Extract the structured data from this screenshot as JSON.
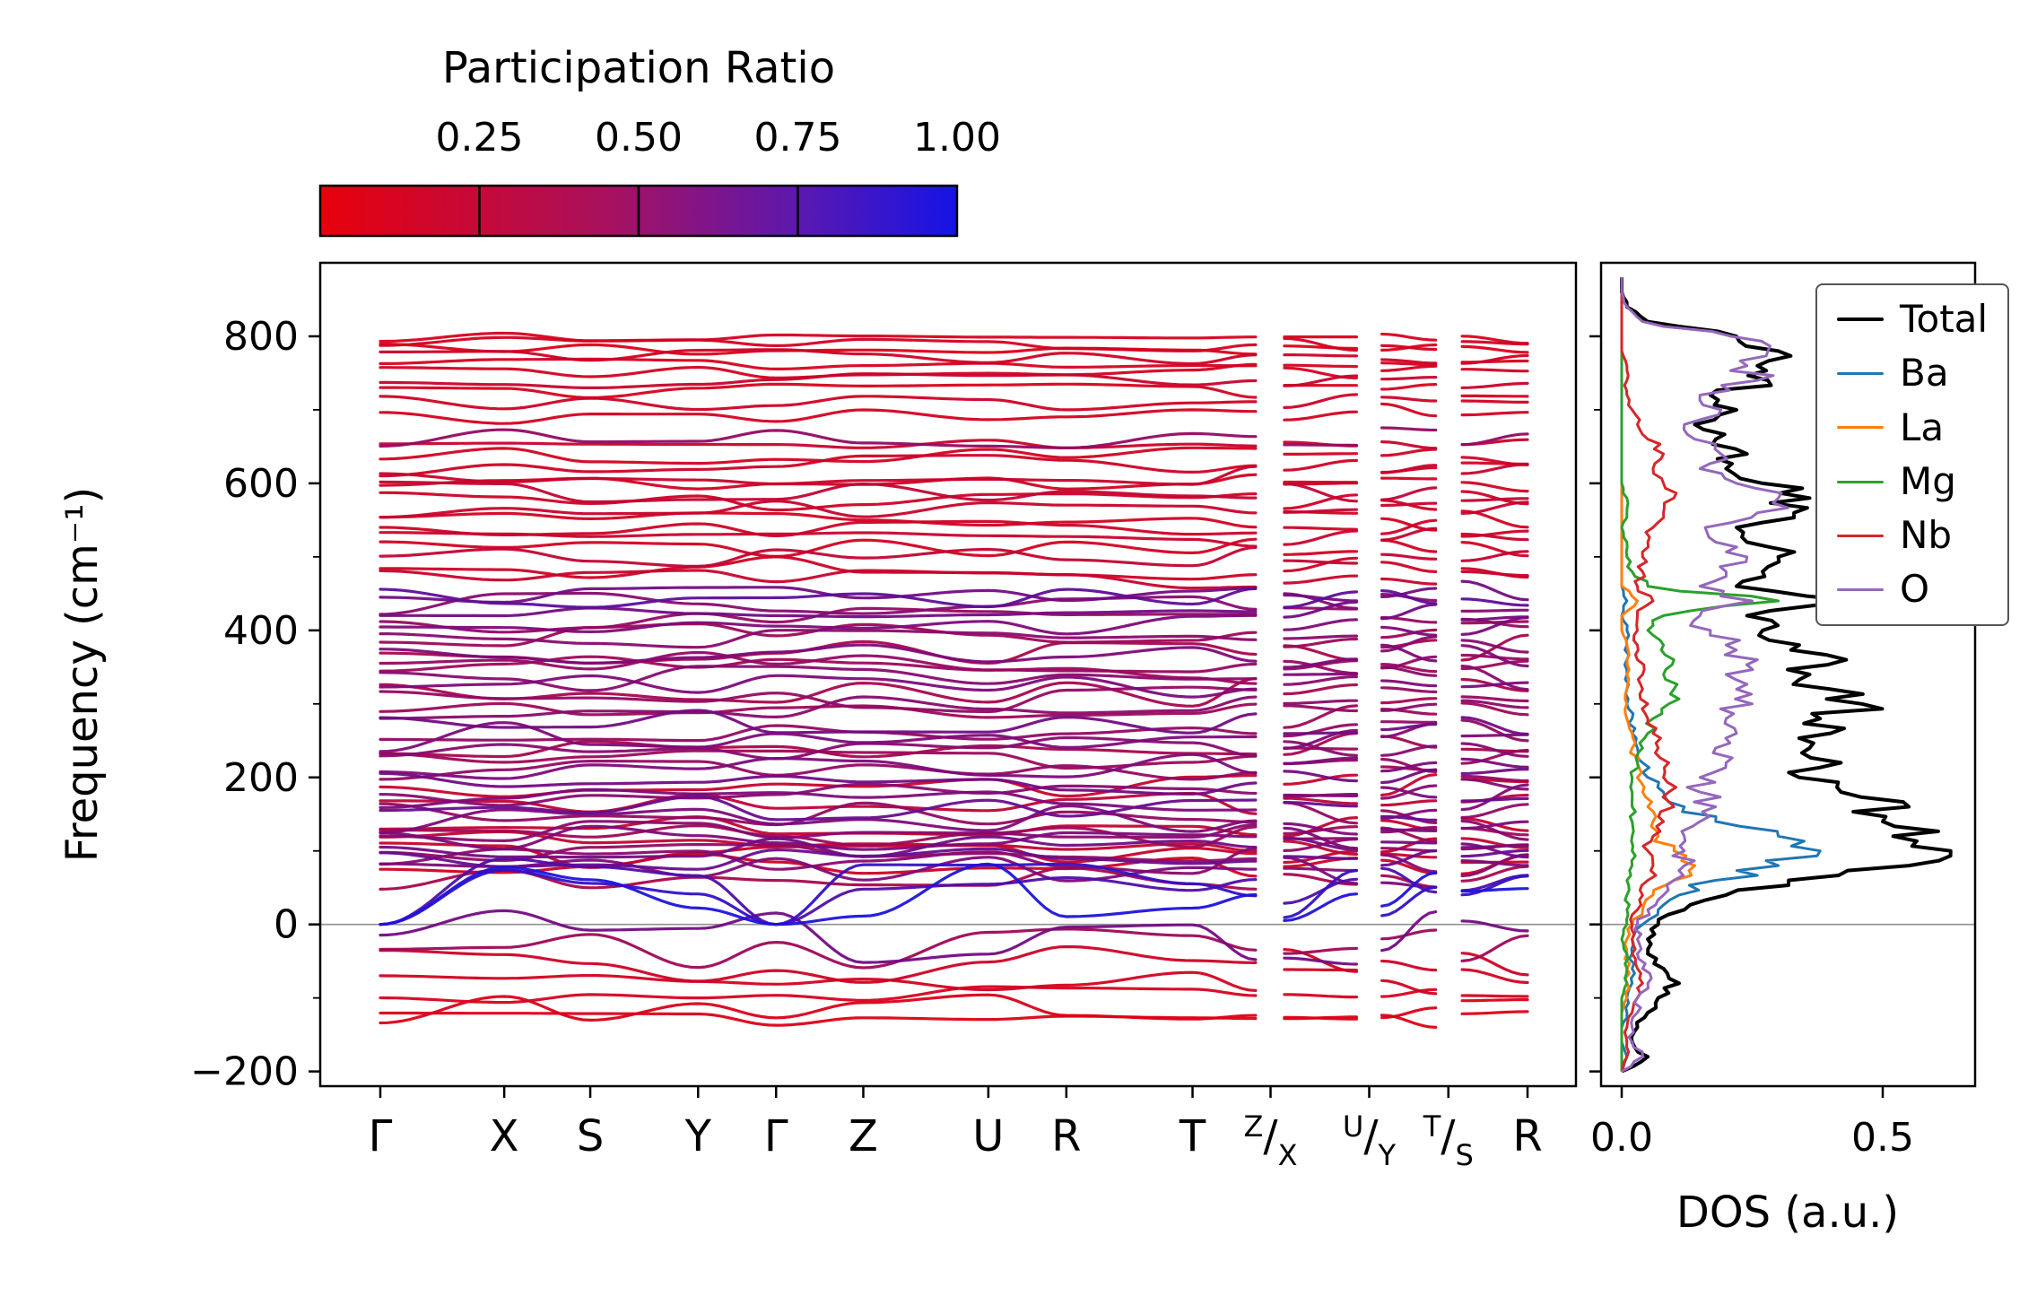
{
  "figure": {
    "background": "#ffffff"
  },
  "colorbar": {
    "title": "Participation Ratio",
    "vmin": 0,
    "vmax": 1,
    "ticks": [
      {
        "v": 0.25,
        "label": "0.25"
      },
      {
        "v": 0.5,
        "label": "0.50"
      },
      {
        "v": 0.75,
        "label": "0.75"
      },
      {
        "v": 1.0,
        "label": "1.00"
      }
    ],
    "gradient": [
      {
        "p": 0,
        "c": "#e8000b"
      },
      {
        "p": 45,
        "c": "#a8115e"
      },
      {
        "p": 75,
        "c": "#5c18af"
      },
      {
        "p": 100,
        "c": "#1414e6"
      }
    ]
  },
  "chart_data": [
    {
      "type": "line",
      "role": "phonon-band-structure",
      "ylabel": "Frequency (cm⁻¹)",
      "ylim": [
        -220,
        900
      ],
      "yticks": [
        {
          "v": -200,
          "label": "−200"
        },
        {
          "v": 0,
          "label": "0"
        },
        {
          "v": 200,
          "label": "200"
        },
        {
          "v": 400,
          "label": "400"
        },
        {
          "v": 600,
          "label": "600"
        },
        {
          "v": 800,
          "label": "800"
        }
      ],
      "yminor": [
        -100,
        100,
        300,
        500,
        700
      ],
      "zero_line_color": "#909090",
      "colormap": {
        "low": "#e8000b",
        "high": "#1414e6",
        "measure": "participation ratio"
      },
      "kpath_labels": [
        {
          "t": "Γ",
          "pos": 0
        },
        {
          "t": "X",
          "pos": 0.108
        },
        {
          "t": "S",
          "pos": 0.183
        },
        {
          "t": "Y",
          "pos": 0.277
        },
        {
          "t": "Γ",
          "pos": 0.345
        },
        {
          "t": "Z",
          "pos": 0.421
        },
        {
          "t": "U",
          "pos": 0.53
        },
        {
          "t": "R",
          "pos": 0.598
        },
        {
          "t": "T",
          "pos": 0.708
        },
        {
          "sup": "Z",
          "sub": "X",
          "pos": 0.776
        },
        {
          "sup": "U",
          "sub": "Y",
          "pos": 0.862
        },
        {
          "sup": "T",
          "sub": "S",
          "pos": 0.931
        },
        {
          "t": "R",
          "pos": 1
        }
      ],
      "segments": [
        {
          "j": [
            0,
            1,
            2,
            3,
            4,
            5,
            6,
            7,
            8,
            9
          ],
          "p": [
            0,
            0.108,
            0.183,
            0.277,
            0.345,
            0.421,
            0.53,
            0.598,
            0.708,
            0.763
          ]
        },
        {
          "j": [
            10,
            11
          ],
          "p": [
            0.788,
            0.851
          ]
        },
        {
          "j": [
            12,
            13
          ],
          "p": [
            0.873,
            0.92
          ]
        },
        {
          "j": [
            14,
            15
          ],
          "p": [
            0.943,
            1
          ]
        }
      ],
      "gamma_nodes": [
        0,
        4
      ],
      "bands": [
        [
          -112,
          22,
          0.06
        ],
        [
          -95,
          14,
          0.08
        ],
        [
          -128,
          12,
          0.05
        ],
        [
          -78,
          18,
          0.1
        ],
        [
          -55,
          25,
          0.12
        ],
        [
          -35,
          30,
          0.35
        ],
        [
          -18,
          38,
          0.55
        ],
        [
          40,
          45,
          0.95,
          1
        ],
        [
          48,
          40,
          0.85,
          1
        ],
        [
          58,
          35,
          0.72,
          1
        ],
        [
          65,
          18,
          0.3
        ],
        [
          72,
          22,
          0.5
        ],
        [
          80,
          16,
          0.12
        ],
        [
          85,
          20,
          0.45
        ],
        [
          90,
          15,
          0.6
        ],
        [
          95,
          18,
          0.15
        ],
        [
          100,
          20,
          0.4
        ],
        [
          105,
          15,
          0.55
        ],
        [
          110,
          18,
          0.18
        ],
        [
          115,
          20,
          0.5
        ],
        [
          120,
          16,
          0.35
        ],
        [
          128,
          18,
          0.45
        ],
        [
          135,
          15,
          0.18
        ],
        [
          142,
          20,
          0.5
        ],
        [
          150,
          16,
          0.4
        ],
        [
          158,
          18,
          0.6
        ],
        [
          165,
          15,
          0.2
        ],
        [
          172,
          18,
          0.5
        ],
        [
          180,
          20,
          0.45
        ],
        [
          188,
          16,
          0.15
        ],
        [
          195,
          18,
          0.55
        ],
        [
          205,
          20,
          0.4
        ],
        [
          215,
          18,
          0.5
        ],
        [
          225,
          16,
          0.35
        ],
        [
          235,
          20,
          0.45
        ],
        [
          245,
          18,
          0.3
        ],
        [
          255,
          20,
          0.5
        ],
        [
          265,
          16,
          0.4
        ],
        [
          275,
          18,
          0.55
        ],
        [
          285,
          20,
          0.35
        ],
        [
          295,
          16,
          0.45
        ],
        [
          305,
          18,
          0.4
        ],
        [
          315,
          20,
          0.3
        ],
        [
          325,
          16,
          0.5
        ],
        [
          335,
          18,
          0.45
        ],
        [
          345,
          20,
          0.35
        ],
        [
          355,
          16,
          0.4
        ],
        [
          365,
          18,
          0.5
        ],
        [
          375,
          20,
          0.3
        ],
        [
          385,
          16,
          0.45
        ],
        [
          395,
          18,
          0.35
        ],
        [
          405,
          16,
          0.5
        ],
        [
          415,
          18,
          0.4
        ],
        [
          425,
          14,
          0.55
        ],
        [
          435,
          16,
          0.45
        ],
        [
          445,
          14,
          0.65
        ],
        [
          452,
          16,
          0.55
        ],
        [
          470,
          14,
          0.15
        ],
        [
          485,
          16,
          0.12
        ],
        [
          500,
          14,
          0.18
        ],
        [
          512,
          12,
          0.1
        ],
        [
          525,
          14,
          0.15
        ],
        [
          538,
          12,
          0.12
        ],
        [
          550,
          14,
          0.1
        ],
        [
          562,
          14,
          0.15
        ],
        [
          575,
          16,
          0.12
        ],
        [
          588,
          14,
          0.18
        ],
        [
          600,
          12,
          0.1
        ],
        [
          612,
          14,
          0.15
        ],
        [
          625,
          16,
          0.12
        ],
        [
          638,
          12,
          0.1
        ],
        [
          650,
          10,
          0.15
        ],
        [
          662,
          14,
          0.4
        ],
        [
          695,
          14,
          0.1
        ],
        [
          710,
          12,
          0.12
        ],
        [
          725,
          10,
          0.08
        ],
        [
          740,
          12,
          0.15
        ],
        [
          752,
          10,
          0.1
        ],
        [
          762,
          8,
          0.08
        ],
        [
          772,
          10,
          0.12
        ],
        [
          782,
          8,
          0.06
        ],
        [
          790,
          10,
          0.1
        ],
        [
          798,
          8,
          0.08
        ]
      ]
    },
    {
      "type": "line",
      "role": "density-of-states",
      "xlabel": "DOS (a.u.)",
      "xlim": [
        -0.04,
        0.68
      ],
      "xticks": [
        {
          "v": 0,
          "label": "0.0"
        },
        {
          "v": 0.5,
          "label": "0.5"
        }
      ],
      "freq_min": -200,
      "freq_step": 20,
      "series": [
        {
          "name": "Total",
          "color": "#000000",
          "lw": 4,
          "values": [
            0.0,
            0.05,
            0.02,
            0.03,
            0.05,
            0.07,
            0.11,
            0.08,
            0.05,
            0.05,
            0.07,
            0.12,
            0.2,
            0.32,
            0.55,
            0.63,
            0.52,
            0.5,
            0.55,
            0.42,
            0.34,
            0.42,
            0.36,
            0.4,
            0.38,
            0.46,
            0.4,
            0.36,
            0.43,
            0.34,
            0.27,
            0.24,
            0.45,
            0.22,
            0.27,
            0.3,
            0.24,
            0.22,
            0.33,
            0.36,
            0.27,
            0.2,
            0.24,
            0.18,
            0.14,
            0.22,
            0.17,
            0.28,
            0.26,
            0.3,
            0.22,
            0.05,
            0.01,
            0.0,
            0.0
          ]
        },
        {
          "name": "Ba",
          "color": "#1f77b4",
          "lw": 3,
          "values": [
            0.0,
            0.01,
            0.0,
            0.0,
            0.01,
            0.01,
            0.02,
            0.02,
            0.02,
            0.02,
            0.04,
            0.07,
            0.11,
            0.18,
            0.3,
            0.38,
            0.3,
            0.18,
            0.12,
            0.08,
            0.05,
            0.04,
            0.03,
            0.02,
            0.02,
            0.01,
            0.01,
            0.01,
            0.01,
            0.01,
            0.01,
            0.0,
            0.01,
            0.0,
            0.0,
            0.0,
            0.0,
            0.0,
            0.0,
            0.0,
            0.0,
            0.0,
            0.0,
            0.0,
            0.0,
            0.0,
            0.0,
            0.0,
            0.0,
            0.0,
            0.0,
            0.0,
            0.0,
            0.0,
            0.0
          ]
        },
        {
          "name": "La",
          "color": "#ff7f0e",
          "lw": 3,
          "values": [
            0.0,
            0.0,
            0.0,
            0.0,
            0.0,
            0.01,
            0.01,
            0.01,
            0.01,
            0.01,
            0.02,
            0.04,
            0.06,
            0.1,
            0.14,
            0.1,
            0.07,
            0.06,
            0.05,
            0.04,
            0.03,
            0.03,
            0.02,
            0.02,
            0.01,
            0.01,
            0.01,
            0.01,
            0.01,
            0.01,
            0.0,
            0.0,
            0.03,
            0.0,
            0.0,
            0.0,
            0.0,
            0.0,
            0.0,
            0.0,
            0.0,
            0.0,
            0.0,
            0.0,
            0.0,
            0.0,
            0.0,
            0.0,
            0.0,
            0.0,
            0.0,
            0.0,
            0.0,
            0.0,
            0.0
          ]
        },
        {
          "name": "Mg",
          "color": "#2ca02c",
          "lw": 3,
          "values": [
            0.0,
            0.0,
            0.0,
            0.0,
            0.0,
            0.0,
            0.01,
            0.01,
            0.01,
            0.0,
            0.01,
            0.01,
            0.01,
            0.01,
            0.02,
            0.02,
            0.02,
            0.02,
            0.02,
            0.02,
            0.02,
            0.03,
            0.04,
            0.05,
            0.06,
            0.09,
            0.1,
            0.08,
            0.1,
            0.08,
            0.05,
            0.08,
            0.3,
            0.05,
            0.02,
            0.01,
            0.01,
            0.0,
            0.01,
            0.01,
            0.0,
            0.0,
            0.0,
            0.0,
            0.0,
            0.0,
            0.0,
            0.0,
            0.0,
            0.0,
            0.0,
            0.0,
            0.0,
            0.0,
            0.0
          ]
        },
        {
          "name": "Nb",
          "color": "#d62728",
          "lw": 3,
          "values": [
            0.0,
            0.01,
            0.01,
            0.01,
            0.02,
            0.03,
            0.04,
            0.03,
            0.02,
            0.02,
            0.02,
            0.03,
            0.04,
            0.05,
            0.06,
            0.05,
            0.06,
            0.08,
            0.1,
            0.09,
            0.08,
            0.09,
            0.07,
            0.06,
            0.05,
            0.05,
            0.04,
            0.04,
            0.03,
            0.03,
            0.03,
            0.03,
            0.06,
            0.03,
            0.04,
            0.04,
            0.05,
            0.06,
            0.08,
            0.1,
            0.08,
            0.06,
            0.08,
            0.05,
            0.03,
            0.02,
            0.01,
            0.01,
            0.01,
            0.0,
            0.0,
            0.0,
            0.0,
            0.0,
            0.0
          ]
        },
        {
          "name": "O",
          "color": "#9467bd",
          "lw": 3,
          "values": [
            0.0,
            0.04,
            0.02,
            0.02,
            0.03,
            0.03,
            0.05,
            0.04,
            0.03,
            0.03,
            0.03,
            0.05,
            0.08,
            0.1,
            0.12,
            0.12,
            0.12,
            0.15,
            0.18,
            0.15,
            0.15,
            0.2,
            0.18,
            0.22,
            0.2,
            0.25,
            0.22,
            0.2,
            0.26,
            0.2,
            0.17,
            0.15,
            0.25,
            0.15,
            0.2,
            0.24,
            0.18,
            0.16,
            0.26,
            0.3,
            0.22,
            0.15,
            0.19,
            0.14,
            0.12,
            0.19,
            0.15,
            0.26,
            0.24,
            0.28,
            0.21,
            0.04,
            0.01,
            0.0,
            0.0
          ]
        }
      ]
    }
  ]
}
